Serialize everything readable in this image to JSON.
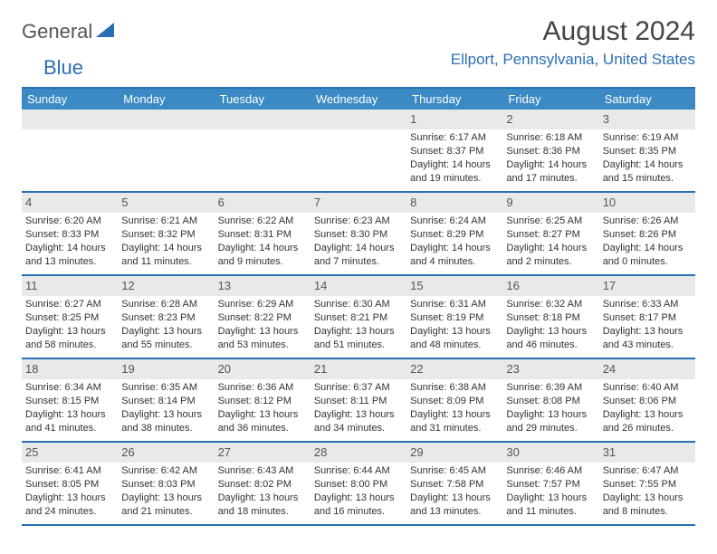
{
  "brand": {
    "text1": "General",
    "text2": "Blue"
  },
  "title": "August 2024",
  "location": "Ellport, Pennsylvania, United States",
  "colors": {
    "accent": "#2a6fb5",
    "header_bg": "#3b8ac4",
    "daynum_bg": "#e9e9e9",
    "text": "#333333",
    "muted": "#555555",
    "white": "#ffffff"
  },
  "typography": {
    "title_size": 30,
    "location_size": 17,
    "dayheader_size": 13,
    "daynum_size": 13,
    "body_size": 11
  },
  "calendar": {
    "day_headers": [
      "Sunday",
      "Monday",
      "Tuesday",
      "Wednesday",
      "Thursday",
      "Friday",
      "Saturday"
    ],
    "weeks": [
      [
        {
          "empty": true
        },
        {
          "empty": true
        },
        {
          "empty": true
        },
        {
          "empty": true
        },
        {
          "num": "1",
          "sunrise": "Sunrise: 6:17 AM",
          "sunset": "Sunset: 8:37 PM",
          "daylight1": "Daylight: 14 hours",
          "daylight2": "and 19 minutes."
        },
        {
          "num": "2",
          "sunrise": "Sunrise: 6:18 AM",
          "sunset": "Sunset: 8:36 PM",
          "daylight1": "Daylight: 14 hours",
          "daylight2": "and 17 minutes."
        },
        {
          "num": "3",
          "sunrise": "Sunrise: 6:19 AM",
          "sunset": "Sunset: 8:35 PM",
          "daylight1": "Daylight: 14 hours",
          "daylight2": "and 15 minutes."
        }
      ],
      [
        {
          "num": "4",
          "sunrise": "Sunrise: 6:20 AM",
          "sunset": "Sunset: 8:33 PM",
          "daylight1": "Daylight: 14 hours",
          "daylight2": "and 13 minutes."
        },
        {
          "num": "5",
          "sunrise": "Sunrise: 6:21 AM",
          "sunset": "Sunset: 8:32 PM",
          "daylight1": "Daylight: 14 hours",
          "daylight2": "and 11 minutes."
        },
        {
          "num": "6",
          "sunrise": "Sunrise: 6:22 AM",
          "sunset": "Sunset: 8:31 PM",
          "daylight1": "Daylight: 14 hours",
          "daylight2": "and 9 minutes."
        },
        {
          "num": "7",
          "sunrise": "Sunrise: 6:23 AM",
          "sunset": "Sunset: 8:30 PM",
          "daylight1": "Daylight: 14 hours",
          "daylight2": "and 7 minutes."
        },
        {
          "num": "8",
          "sunrise": "Sunrise: 6:24 AM",
          "sunset": "Sunset: 8:29 PM",
          "daylight1": "Daylight: 14 hours",
          "daylight2": "and 4 minutes."
        },
        {
          "num": "9",
          "sunrise": "Sunrise: 6:25 AM",
          "sunset": "Sunset: 8:27 PM",
          "daylight1": "Daylight: 14 hours",
          "daylight2": "and 2 minutes."
        },
        {
          "num": "10",
          "sunrise": "Sunrise: 6:26 AM",
          "sunset": "Sunset: 8:26 PM",
          "daylight1": "Daylight: 14 hours",
          "daylight2": "and 0 minutes."
        }
      ],
      [
        {
          "num": "11",
          "sunrise": "Sunrise: 6:27 AM",
          "sunset": "Sunset: 8:25 PM",
          "daylight1": "Daylight: 13 hours",
          "daylight2": "and 58 minutes."
        },
        {
          "num": "12",
          "sunrise": "Sunrise: 6:28 AM",
          "sunset": "Sunset: 8:23 PM",
          "daylight1": "Daylight: 13 hours",
          "daylight2": "and 55 minutes."
        },
        {
          "num": "13",
          "sunrise": "Sunrise: 6:29 AM",
          "sunset": "Sunset: 8:22 PM",
          "daylight1": "Daylight: 13 hours",
          "daylight2": "and 53 minutes."
        },
        {
          "num": "14",
          "sunrise": "Sunrise: 6:30 AM",
          "sunset": "Sunset: 8:21 PM",
          "daylight1": "Daylight: 13 hours",
          "daylight2": "and 51 minutes."
        },
        {
          "num": "15",
          "sunrise": "Sunrise: 6:31 AM",
          "sunset": "Sunset: 8:19 PM",
          "daylight1": "Daylight: 13 hours",
          "daylight2": "and 48 minutes."
        },
        {
          "num": "16",
          "sunrise": "Sunrise: 6:32 AM",
          "sunset": "Sunset: 8:18 PM",
          "daylight1": "Daylight: 13 hours",
          "daylight2": "and 46 minutes."
        },
        {
          "num": "17",
          "sunrise": "Sunrise: 6:33 AM",
          "sunset": "Sunset: 8:17 PM",
          "daylight1": "Daylight: 13 hours",
          "daylight2": "and 43 minutes."
        }
      ],
      [
        {
          "num": "18",
          "sunrise": "Sunrise: 6:34 AM",
          "sunset": "Sunset: 8:15 PM",
          "daylight1": "Daylight: 13 hours",
          "daylight2": "and 41 minutes."
        },
        {
          "num": "19",
          "sunrise": "Sunrise: 6:35 AM",
          "sunset": "Sunset: 8:14 PM",
          "daylight1": "Daylight: 13 hours",
          "daylight2": "and 38 minutes."
        },
        {
          "num": "20",
          "sunrise": "Sunrise: 6:36 AM",
          "sunset": "Sunset: 8:12 PM",
          "daylight1": "Daylight: 13 hours",
          "daylight2": "and 36 minutes."
        },
        {
          "num": "21",
          "sunrise": "Sunrise: 6:37 AM",
          "sunset": "Sunset: 8:11 PM",
          "daylight1": "Daylight: 13 hours",
          "daylight2": "and 34 minutes."
        },
        {
          "num": "22",
          "sunrise": "Sunrise: 6:38 AM",
          "sunset": "Sunset: 8:09 PM",
          "daylight1": "Daylight: 13 hours",
          "daylight2": "and 31 minutes."
        },
        {
          "num": "23",
          "sunrise": "Sunrise: 6:39 AM",
          "sunset": "Sunset: 8:08 PM",
          "daylight1": "Daylight: 13 hours",
          "daylight2": "and 29 minutes."
        },
        {
          "num": "24",
          "sunrise": "Sunrise: 6:40 AM",
          "sunset": "Sunset: 8:06 PM",
          "daylight1": "Daylight: 13 hours",
          "daylight2": "and 26 minutes."
        }
      ],
      [
        {
          "num": "25",
          "sunrise": "Sunrise: 6:41 AM",
          "sunset": "Sunset: 8:05 PM",
          "daylight1": "Daylight: 13 hours",
          "daylight2": "and 24 minutes."
        },
        {
          "num": "26",
          "sunrise": "Sunrise: 6:42 AM",
          "sunset": "Sunset: 8:03 PM",
          "daylight1": "Daylight: 13 hours",
          "daylight2": "and 21 minutes."
        },
        {
          "num": "27",
          "sunrise": "Sunrise: 6:43 AM",
          "sunset": "Sunset: 8:02 PM",
          "daylight1": "Daylight: 13 hours",
          "daylight2": "and 18 minutes."
        },
        {
          "num": "28",
          "sunrise": "Sunrise: 6:44 AM",
          "sunset": "Sunset: 8:00 PM",
          "daylight1": "Daylight: 13 hours",
          "daylight2": "and 16 minutes."
        },
        {
          "num": "29",
          "sunrise": "Sunrise: 6:45 AM",
          "sunset": "Sunset: 7:58 PM",
          "daylight1": "Daylight: 13 hours",
          "daylight2": "and 13 minutes."
        },
        {
          "num": "30",
          "sunrise": "Sunrise: 6:46 AM",
          "sunset": "Sunset: 7:57 PM",
          "daylight1": "Daylight: 13 hours",
          "daylight2": "and 11 minutes."
        },
        {
          "num": "31",
          "sunrise": "Sunrise: 6:47 AM",
          "sunset": "Sunset: 7:55 PM",
          "daylight1": "Daylight: 13 hours",
          "daylight2": "and 8 minutes."
        }
      ]
    ]
  }
}
